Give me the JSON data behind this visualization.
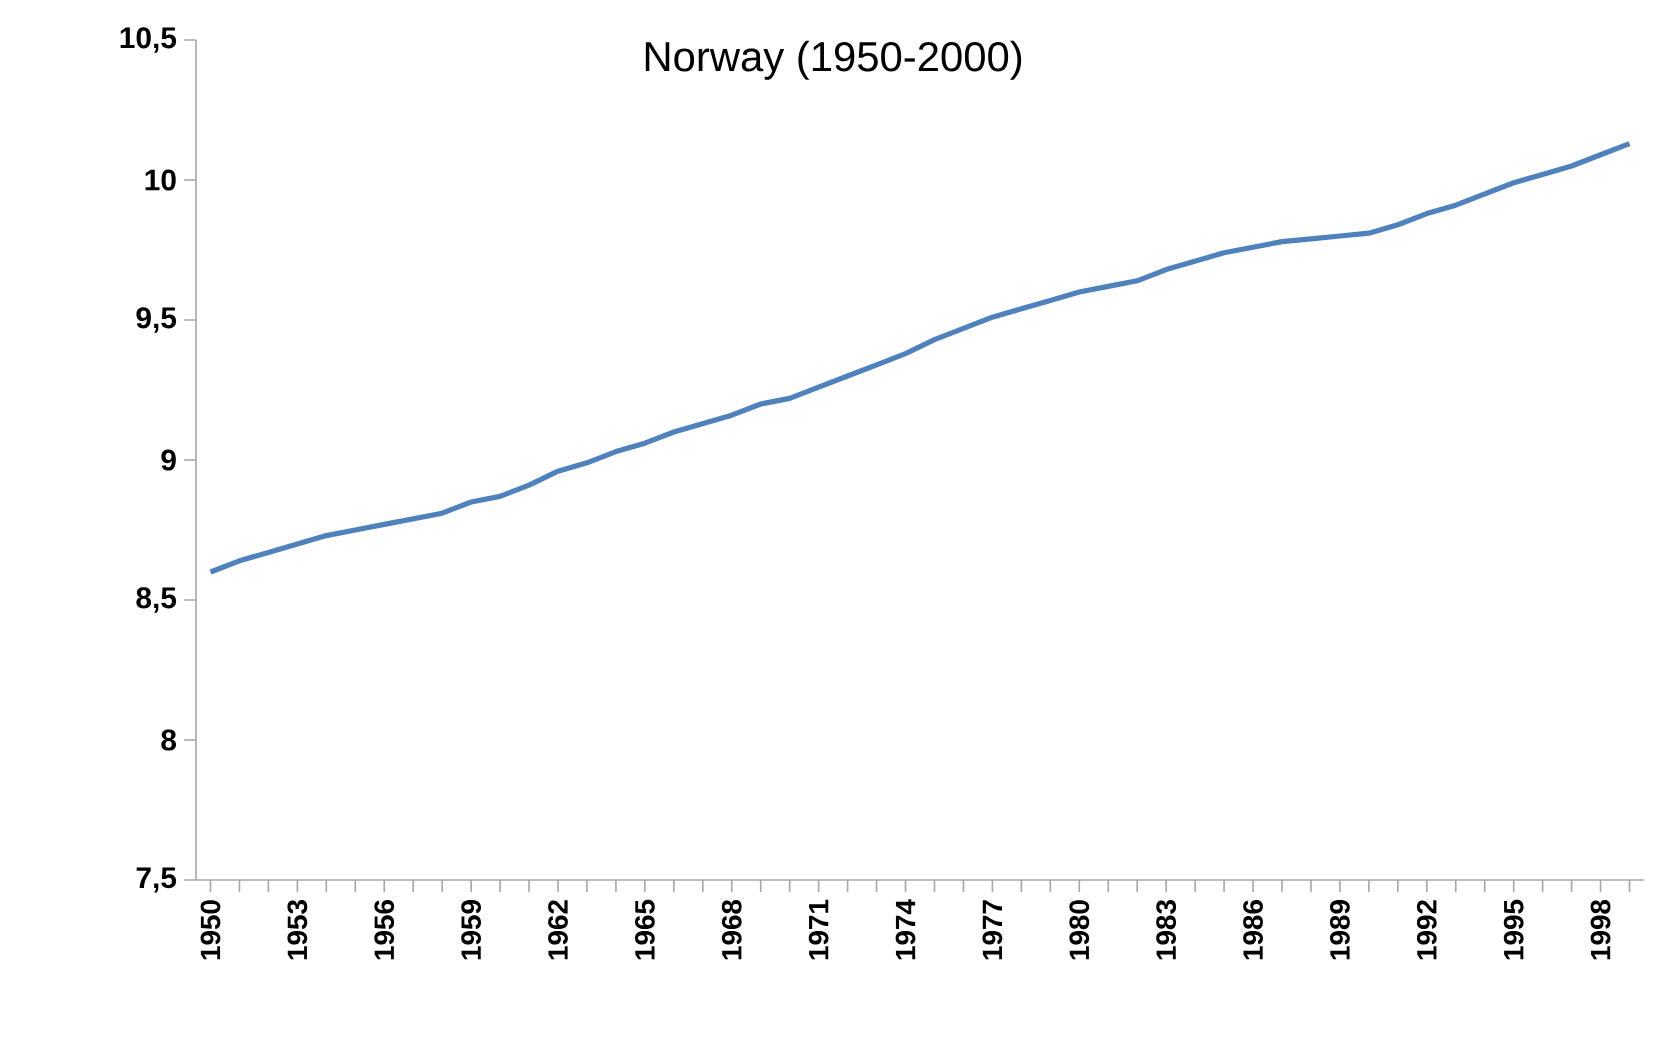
{
  "chart_data": {
    "type": "line",
    "title": "Norway (1950-2000)",
    "categories": [
      "1950",
      null,
      null,
      "1953",
      null,
      null,
      "1956",
      null,
      null,
      "1959",
      null,
      null,
      "1962",
      null,
      null,
      "1965",
      null,
      null,
      "1968",
      null,
      null,
      "1971",
      null,
      null,
      "1974",
      null,
      null,
      "1977",
      null,
      null,
      "1980",
      null,
      null,
      "1983",
      null,
      null,
      "1986",
      null,
      null,
      "1989",
      null,
      null,
      "1992",
      null,
      null,
      "1995",
      null,
      null,
      "1998",
      null
    ],
    "series": [
      {
        "color": "#4f81bd",
        "values": [
          8.6,
          8.64,
          8.67,
          8.7,
          8.73,
          8.75,
          8.77,
          8.79,
          8.81,
          8.85,
          8.87,
          8.91,
          8.96,
          8.99,
          9.03,
          9.06,
          9.1,
          9.13,
          9.16,
          9.2,
          9.22,
          9.26,
          9.3,
          9.34,
          9.38,
          9.43,
          9.47,
          9.51,
          9.54,
          9.57,
          9.6,
          9.62,
          9.64,
          9.68,
          9.71,
          9.74,
          9.76,
          9.78,
          9.79,
          9.8,
          9.81,
          9.84,
          9.88,
          9.91,
          9.95,
          9.99,
          10.02,
          10.05,
          10.09,
          10.13
        ]
      }
    ],
    "ylim": [
      7.5,
      10.5
    ],
    "yticks": [
      {
        "value": 7.5,
        "label": "7,5"
      },
      {
        "value": 8,
        "label": "8"
      },
      {
        "value": 8.5,
        "label": "8,5"
      },
      {
        "value": 9,
        "label": "9"
      },
      {
        "value": 9.5,
        "label": "9,5"
      },
      {
        "value": 10,
        "label": "10"
      },
      {
        "value": 10.5,
        "label": "10,5"
      }
    ],
    "grid": false,
    "marker": "none",
    "line_style": "solid"
  }
}
